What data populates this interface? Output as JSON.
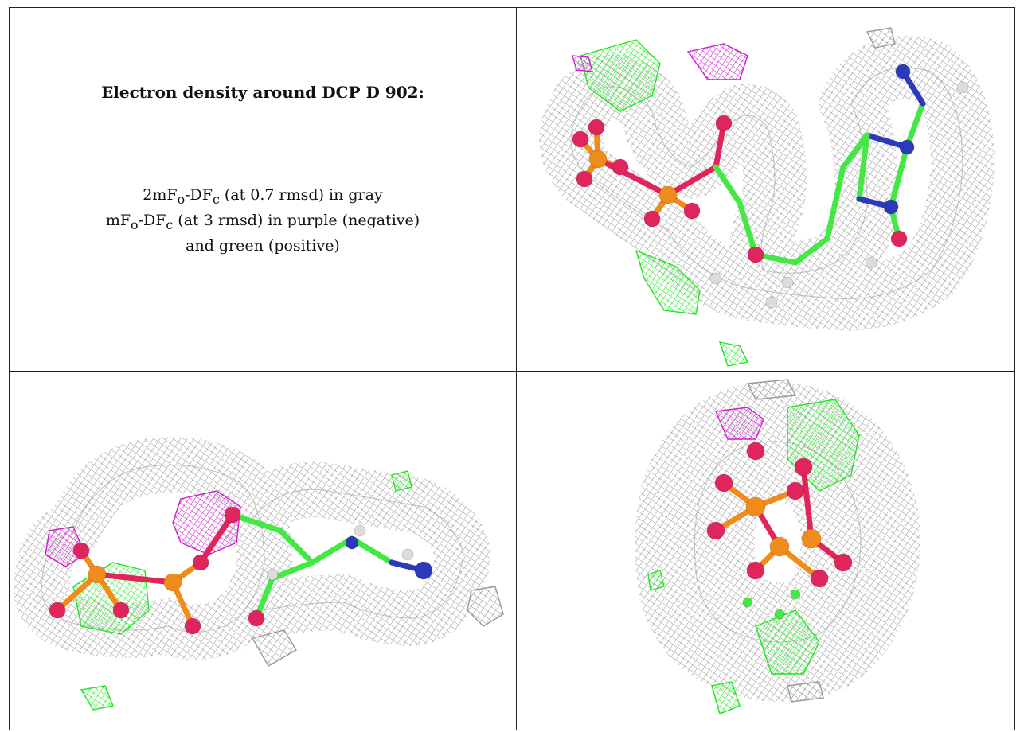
{
  "title": "Electron density around DCP D 902:",
  "legend": {
    "line1": {
      "a": "2mF",
      "a_sub": "o",
      "b": "-DF",
      "b_sub": "c",
      "rest": " (at 0.7 rmsd) in gray"
    },
    "line2": {
      "a": "mF",
      "a_sub": "o",
      "b": "-DF",
      "b_sub": "c",
      "rest": " (at 3 rmsd) in purple (negative)"
    },
    "line3": "and green (positive)"
  },
  "colors": {
    "map_2fofc": "#9a9a9a",
    "map_fofc_negative": "#d01cd0",
    "map_fofc_positive": "#1ee81e",
    "carbon": "#44e844",
    "phosphorus": "#f08c1c",
    "oxygen": "#e0245c",
    "nitrogen": "#2b3bb8",
    "hydrogen": "#dcdcdc"
  }
}
